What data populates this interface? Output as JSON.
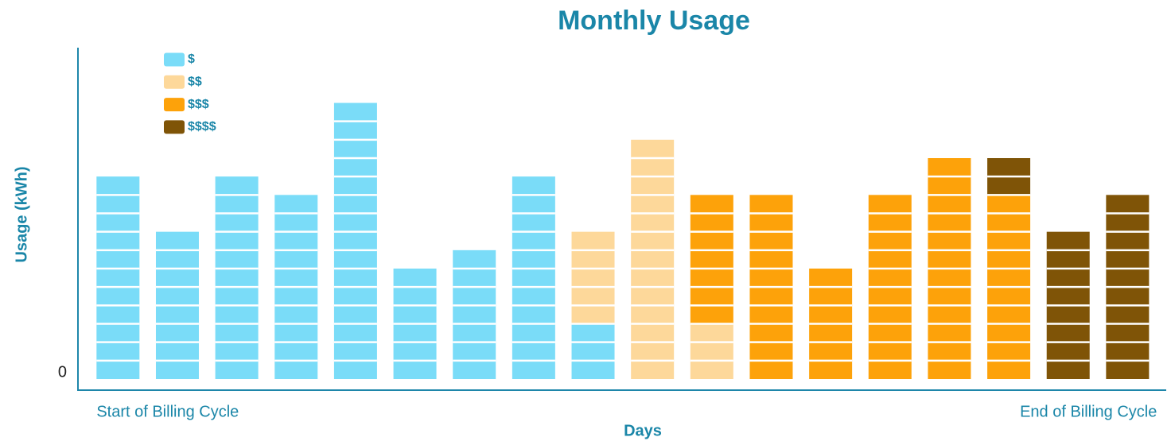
{
  "chart_data": {
    "type": "stacked_bar",
    "title": "Monthly Usage",
    "x_label": "Days",
    "y_label": "Usage (kWh)",
    "categories": [
      "Start of Billing Cycle",
      null,
      null,
      null,
      null,
      null,
      null,
      null,
      null,
      null,
      null,
      null,
      null,
      null,
      null,
      null,
      null,
      "End of Billing Cycle"
    ],
    "series": [
      {
        "name": "$",
        "color": "#7adcf8",
        "values": [
          11,
          8,
          11,
          10,
          15,
          6,
          7,
          11,
          3,
          0,
          0,
          0,
          0,
          0,
          0,
          0,
          0,
          0
        ]
      },
      {
        "name": "$$",
        "color": "#fdd89a",
        "values": [
          0,
          0,
          0,
          0,
          0,
          0,
          0,
          0,
          5,
          13,
          3,
          0,
          0,
          0,
          0,
          0,
          0,
          0
        ]
      },
      {
        "name": "$$$",
        "color": "#fda20a",
        "values": [
          0,
          0,
          0,
          0,
          0,
          0,
          0,
          0,
          0,
          0,
          7,
          10,
          6,
          10,
          12,
          10,
          0,
          0
        ]
      },
      {
        "name": "$$$$",
        "color": "#7f5407",
        "values": [
          0,
          0,
          0,
          0,
          0,
          0,
          0,
          0,
          0,
          0,
          0,
          0,
          0,
          0,
          0,
          2,
          8,
          10
        ]
      }
    ],
    "ylim": [
      0,
      18
    ],
    "yticks": [
      0
    ],
    "legend": "upper left"
  }
}
